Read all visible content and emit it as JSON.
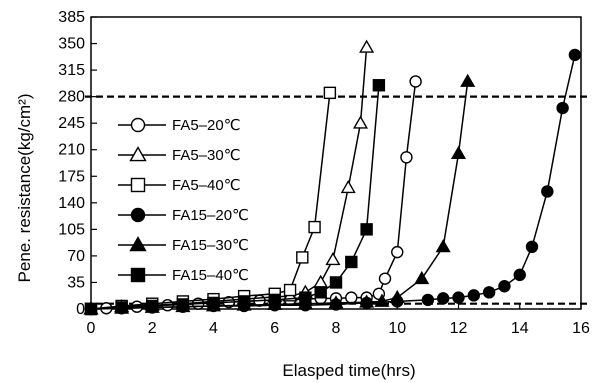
{
  "chart_data": {
    "type": "line",
    "xlabel": "Elasped time(hrs)",
    "ylabel": "Pene. resistance(kg/cm²)",
    "xlim": [
      0,
      16
    ],
    "ylim": [
      0,
      385
    ],
    "xticks": [
      0,
      2,
      4,
      6,
      8,
      10,
      12,
      14,
      16
    ],
    "yticks": [
      0,
      35,
      70,
      105,
      140,
      175,
      210,
      245,
      280,
      315,
      350,
      385
    ],
    "grid": false,
    "legend": "left-center",
    "reference_lines": [
      {
        "y": 280,
        "style": "dashed"
      },
      {
        "y": 7,
        "style": "dashed"
      }
    ],
    "series": [
      {
        "name": "FA5–20℃",
        "marker": "circle-open",
        "color": "#000000",
        "points": [
          [
            0,
            0
          ],
          [
            0.5,
            1
          ],
          [
            1,
            2
          ],
          [
            1.5,
            3
          ],
          [
            2,
            4
          ],
          [
            2.5,
            5
          ],
          [
            3,
            6
          ],
          [
            3.5,
            7
          ],
          [
            4,
            8
          ],
          [
            4.5,
            9
          ],
          [
            5,
            10
          ],
          [
            5.5,
            11
          ],
          [
            6,
            12
          ],
          [
            6.5,
            12
          ],
          [
            7,
            13
          ],
          [
            7.5,
            14
          ],
          [
            8,
            14
          ],
          [
            8.5,
            15
          ],
          [
            9,
            15
          ],
          [
            9.4,
            20
          ],
          [
            9.6,
            40
          ],
          [
            10,
            75
          ],
          [
            10.3,
            200
          ],
          [
            10.6,
            300
          ]
        ]
      },
      {
        "name": "FA5–30℃",
        "marker": "triangle-open",
        "color": "#000000",
        "points": [
          [
            0,
            0
          ],
          [
            1,
            3
          ],
          [
            2,
            5
          ],
          [
            3,
            7
          ],
          [
            4,
            10
          ],
          [
            5,
            13
          ],
          [
            6,
            16
          ],
          [
            6.5,
            17
          ],
          [
            7,
            22
          ],
          [
            7.5,
            35
          ],
          [
            7.9,
            65
          ],
          [
            8.4,
            160
          ],
          [
            8.8,
            245
          ],
          [
            9,
            345
          ]
        ]
      },
      {
        "name": "FA5–40℃",
        "marker": "square-open",
        "color": "#000000",
        "points": [
          [
            0,
            0
          ],
          [
            1,
            4
          ],
          [
            2,
            7
          ],
          [
            3,
            10
          ],
          [
            4,
            13
          ],
          [
            5,
            17
          ],
          [
            6,
            20
          ],
          [
            6.5,
            25
          ],
          [
            6.9,
            68
          ],
          [
            7.3,
            108
          ],
          [
            7.8,
            285
          ]
        ]
      },
      {
        "name": "FA15–20℃",
        "marker": "circle-filled",
        "color": "#000000",
        "points": [
          [
            0,
            0
          ],
          [
            1,
            1
          ],
          [
            2,
            2
          ],
          [
            3,
            3
          ],
          [
            4,
            4
          ],
          [
            5,
            4
          ],
          [
            6,
            5
          ],
          [
            7,
            5
          ],
          [
            8,
            6
          ],
          [
            9,
            8
          ],
          [
            10,
            10
          ],
          [
            11,
            12
          ],
          [
            11.5,
            14
          ],
          [
            12,
            15
          ],
          [
            12.5,
            18
          ],
          [
            13,
            22
          ],
          [
            13.5,
            30
          ],
          [
            14,
            45
          ],
          [
            14.4,
            82
          ],
          [
            14.9,
            155
          ],
          [
            15.4,
            265
          ],
          [
            15.8,
            335
          ]
        ]
      },
      {
        "name": "FA15–30℃",
        "marker": "triangle-filled",
        "color": "#000000",
        "points": [
          [
            0,
            0
          ],
          [
            1,
            1
          ],
          [
            2,
            2
          ],
          [
            3,
            3
          ],
          [
            4,
            4
          ],
          [
            5,
            5
          ],
          [
            6,
            6
          ],
          [
            7,
            7
          ],
          [
            8,
            8
          ],
          [
            9,
            9
          ],
          [
            9.5,
            10
          ],
          [
            10,
            15
          ],
          [
            10.8,
            40
          ],
          [
            11.5,
            82
          ],
          [
            12,
            205
          ],
          [
            12.3,
            300
          ]
        ]
      },
      {
        "name": "FA15–40℃",
        "marker": "square-filled",
        "color": "#000000",
        "points": [
          [
            0,
            0
          ],
          [
            1,
            2
          ],
          [
            2,
            4
          ],
          [
            3,
            6
          ],
          [
            4,
            8
          ],
          [
            5,
            10
          ],
          [
            6,
            12
          ],
          [
            7,
            15
          ],
          [
            7.5,
            22
          ],
          [
            8,
            35
          ],
          [
            8.5,
            62
          ],
          [
            9,
            105
          ],
          [
            9.4,
            295
          ]
        ]
      }
    ]
  }
}
